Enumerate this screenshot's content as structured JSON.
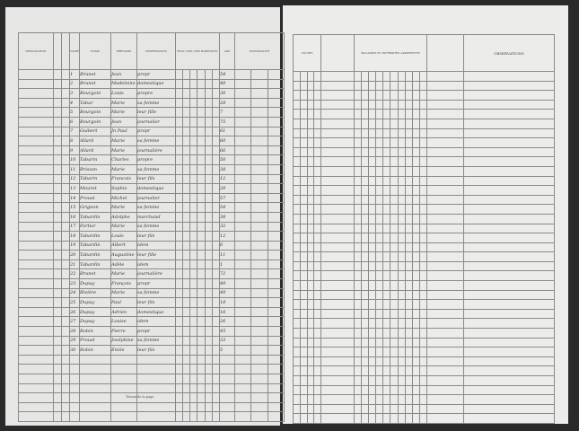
{
  "left_headers": [
    "DÉSIGNATION",
    "NUMÉROS",
    "NOMS",
    "PRÉNOMS",
    "PROFESSIONS",
    "ÉTAT CIVIL DES HABITANTS",
    "AGE",
    "NATIONALITÉ"
  ],
  "right_headers": [
    "CULTES",
    "MALADIES ET INFIRMITÉS APPARENTES",
    "OBSERVATIONS"
  ],
  "total_label": "Totaux de la page",
  "rows": [
    [
      "1",
      "Brunet",
      "Jean",
      "propr",
      "54"
    ],
    [
      "2",
      "Brunet",
      "Madeleine",
      "domestique",
      "40"
    ],
    [
      "3",
      "Bourgoin",
      "Louis",
      "propre",
      "30"
    ],
    [
      "4",
      "Tabar",
      "Marie",
      "sa femme",
      "28"
    ],
    [
      "5",
      "Bourgoin",
      "Marie",
      "leur fille",
      "7"
    ],
    [
      "6",
      "Bourgoin",
      "Jean",
      "journalier",
      "75"
    ],
    [
      "7",
      "Guibert",
      "Jn Paul",
      "propr",
      "61"
    ],
    [
      "8",
      "Allard",
      "Marie",
      "sa femme",
      "60"
    ],
    [
      "9",
      "Allard",
      "Marie",
      "journalière",
      "66"
    ],
    [
      "10",
      "Tabarin",
      "Charles",
      "propre",
      "50"
    ],
    [
      "11",
      "Brisson",
      "Marie",
      "sa femme",
      "38"
    ],
    [
      "12",
      "Tabarin",
      "Francois",
      "leur fils",
      "12"
    ],
    [
      "13",
      "Mouret",
      "Sophie",
      "domestique",
      "20"
    ],
    [
      "14",
      "Proust",
      "Michel",
      "journalier",
      "57"
    ],
    [
      "15",
      "Grignon",
      "Marie",
      "sa femme",
      "54"
    ],
    [
      "16",
      "Tabardin",
      "Adolphe",
      "marchand",
      "38"
    ],
    [
      "17",
      "Fortier",
      "Marie",
      "sa femme",
      "32"
    ],
    [
      "18",
      "Tabardin",
      "Louis",
      "leur fils",
      "12"
    ],
    [
      "19",
      "Tabardin",
      "Albert",
      "idem",
      "6"
    ],
    [
      "20",
      "Tabardin",
      "Augustine",
      "leur fille",
      "11"
    ],
    [
      "21",
      "Tabardin",
      "Adèle",
      "idem",
      "1"
    ],
    [
      "22",
      "Brunet",
      "Marie",
      "journalière",
      "72"
    ],
    [
      "23",
      "Dupuy",
      "François",
      "propr",
      "40"
    ],
    [
      "24",
      "Rivière",
      "Marie",
      "sa femme",
      "40"
    ],
    [
      "25",
      "Dupuy",
      "Paul",
      "leur fils",
      "18"
    ],
    [
      "26",
      "Dupuy",
      "Adrien",
      "domestique",
      "16"
    ],
    [
      "27",
      "Dupuy",
      "Louise",
      "idem",
      "26"
    ],
    [
      "28",
      "Robin",
      "Pierre",
      "propr",
      "45"
    ],
    [
      "29",
      "Proust",
      "Joséphine",
      "sa femme",
      "33"
    ],
    [
      "30",
      "Robin",
      "Émile",
      "leur fils",
      "5"
    ]
  ]
}
